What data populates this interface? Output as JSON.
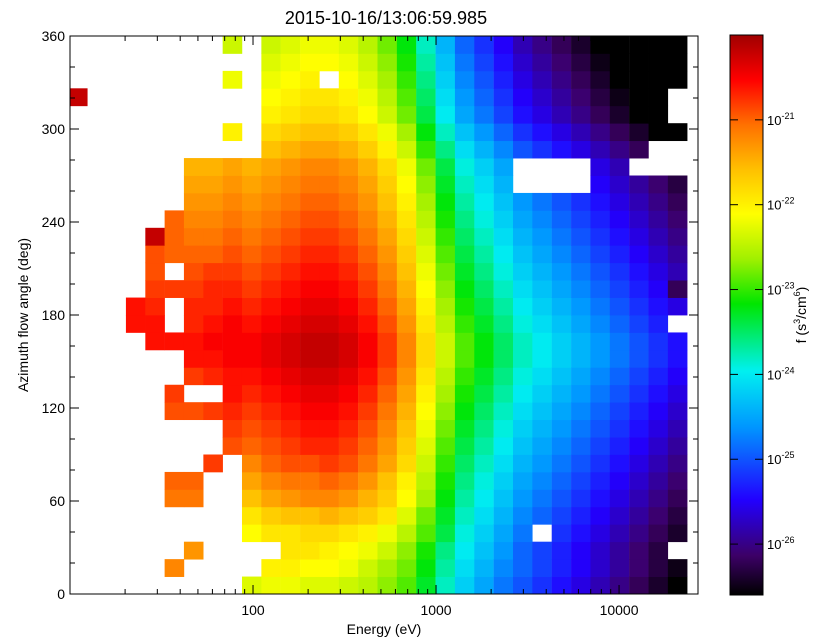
{
  "chart_data": {
    "type": "heatmap",
    "title": "2015-10-16/13:06:59.985",
    "xlabel": "Energy (eV)",
    "ylabel": "Azimuth flow angle (deg)",
    "xscale": "log",
    "xlim": [
      10,
      27000
    ],
    "ylim": [
      0,
      360
    ],
    "xticks": [
      {
        "value": 100,
        "label": "100"
      },
      {
        "value": 1000,
        "label": "1000"
      },
      {
        "value": 10000,
        "label": "10000"
      }
    ],
    "yticks": [
      {
        "value": 0,
        "label": "0"
      },
      {
        "value": 60,
        "label": "60"
      },
      {
        "value": 120,
        "label": "120"
      },
      {
        "value": 180,
        "label": "180"
      },
      {
        "value": 240,
        "label": "240"
      },
      {
        "value": 300,
        "label": "300"
      },
      {
        "value": 360,
        "label": "360"
      }
    ],
    "grid": false,
    "energy_bins_eV": [
      11.0,
      14.0,
      17.9,
      22.8,
      29.1,
      37.1,
      47.3,
      60.4,
      77.0,
      98.2,
      125.3,
      159.8,
      203.9,
      260.1,
      331.9,
      423.4,
      540.1,
      689.1,
      879.1,
      1121.5,
      1430.8,
      1825.3,
      2328.7,
      2970.9,
      3790.2,
      4835.4,
      6168.8,
      7870.1,
      10040.4,
      12809.3,
      16341.7,
      20848.4
    ],
    "azimuth_bins_deg": [
      5.625,
      16.875,
      28.125,
      39.375,
      50.625,
      61.875,
      73.125,
      84.375,
      95.625,
      106.875,
      118.125,
      129.375,
      140.625,
      151.875,
      163.125,
      174.375,
      185.625,
      196.875,
      208.125,
      219.375,
      230.625,
      241.875,
      253.125,
      264.375,
      275.625,
      286.875,
      298.125,
      309.375,
      320.625,
      331.875,
      343.125,
      354.375
    ],
    "value_encoding": "log10 of phase space density f (s^3/cm^6); null = no counts",
    "value_rows_by_azimuth": [
      [
        null,
        null,
        null,
        null,
        null,
        null,
        null,
        null,
        null,
        -22.3,
        -22.2,
        -22.2,
        -22.3,
        -22.3,
        -22.4,
        -22.5,
        -22.7,
        -22.9,
        -23.3,
        -23.8,
        -24.2,
        -24.5,
        -24.8,
        -25.0,
        -25.2,
        -25.4,
        -25.6,
        -25.8,
        -26.0,
        -26.2,
        -26.4,
        -26.6
      ],
      [
        null,
        null,
        null,
        null,
        null,
        -21.2,
        null,
        null,
        null,
        null,
        -22.0,
        -22.0,
        -22.1,
        -22.1,
        -22.2,
        -22.4,
        -22.6,
        -22.8,
        -23.2,
        -23.7,
        -24.1,
        -24.4,
        -24.7,
        -24.9,
        -25.1,
        -25.3,
        -25.5,
        -25.7,
        -25.9,
        -26.1,
        -26.3,
        -26.5
      ],
      [
        null,
        null,
        null,
        null,
        null,
        null,
        -21.3,
        null,
        null,
        null,
        null,
        -21.9,
        -21.9,
        -22.0,
        -22.1,
        -22.2,
        -22.4,
        -22.7,
        -23.1,
        -23.6,
        -24.0,
        -24.3,
        -24.6,
        -24.9,
        -25.1,
        -25.3,
        -25.5,
        -25.7,
        -25.9,
        -26.1,
        -26.3,
        null
      ],
      [
        null,
        null,
        null,
        null,
        null,
        null,
        null,
        null,
        null,
        -22.1,
        -21.9,
        -21.9,
        -21.8,
        -21.8,
        -21.9,
        -22.0,
        -22.2,
        -22.5,
        -22.9,
        -23.4,
        -23.9,
        -24.2,
        -24.5,
        -24.8,
        null,
        -25.2,
        -25.4,
        -25.6,
        -25.8,
        -26.0,
        -26.2,
        -26.4
      ],
      [
        null,
        null,
        null,
        null,
        null,
        null,
        null,
        null,
        null,
        -21.9,
        -21.7,
        -21.6,
        -21.6,
        -21.5,
        -21.6,
        -21.7,
        -21.9,
        -22.3,
        -22.8,
        -23.3,
        -23.8,
        -24.1,
        -24.4,
        -24.7,
        -24.9,
        -25.1,
        -25.3,
        -25.5,
        -25.7,
        -25.9,
        -26.1,
        -26.3
      ],
      [
        null,
        null,
        null,
        null,
        null,
        -21.1,
        -21.1,
        null,
        null,
        -21.6,
        -21.4,
        -21.3,
        -21.2,
        -21.2,
        -21.3,
        -21.5,
        -21.7,
        -22.1,
        -22.6,
        -23.2,
        -23.7,
        -24.0,
        -24.3,
        -24.6,
        -24.8,
        -25.0,
        -25.2,
        -25.4,
        -25.6,
        -25.8,
        -26.0,
        -26.2
      ],
      [
        null,
        null,
        null,
        null,
        null,
        -21.0,
        -21.0,
        null,
        null,
        -21.4,
        -21.2,
        -21.1,
        -21.1,
        -21.0,
        -21.1,
        -21.3,
        -21.6,
        -22.0,
        -22.5,
        -23.1,
        -23.6,
        -23.9,
        -24.2,
        -24.5,
        -24.7,
        -24.9,
        -25.1,
        -25.3,
        -25.5,
        -25.7,
        -25.9,
        -26.1
      ],
      [
        null,
        null,
        null,
        null,
        null,
        null,
        null,
        -20.8,
        null,
        -21.2,
        -21.0,
        -20.9,
        -20.9,
        -20.8,
        -20.9,
        -21.1,
        -21.4,
        -21.8,
        -22.4,
        -23.0,
        -23.5,
        -23.8,
        -24.1,
        -24.4,
        -24.6,
        -24.8,
        -25.0,
        -25.2,
        -25.4,
        -25.6,
        -25.8,
        -26.0
      ],
      [
        null,
        null,
        null,
        null,
        null,
        null,
        null,
        null,
        -20.9,
        -21.0,
        -20.9,
        -20.8,
        -20.7,
        -20.7,
        -20.8,
        -21.0,
        -21.3,
        -21.7,
        -22.3,
        -22.9,
        -23.4,
        -23.7,
        -24.0,
        -24.3,
        -24.5,
        -24.7,
        -24.9,
        -25.1,
        -25.3,
        -25.5,
        -25.7,
        -25.9
      ],
      [
        null,
        null,
        null,
        null,
        null,
        null,
        null,
        null,
        -20.8,
        -20.9,
        -20.8,
        -20.7,
        -20.6,
        -20.6,
        -20.7,
        -20.9,
        -21.2,
        -21.6,
        -22.2,
        -22.8,
        -23.3,
        -23.6,
        -23.9,
        -24.2,
        -24.4,
        -24.6,
        -24.8,
        -25.0,
        -25.2,
        -25.4,
        -25.6,
        -25.8
      ],
      [
        null,
        null,
        null,
        null,
        null,
        -20.9,
        -20.9,
        -20.8,
        -20.7,
        -20.8,
        -20.7,
        -20.6,
        -20.5,
        -20.5,
        -20.6,
        -20.8,
        -21.1,
        -21.5,
        -22.1,
        -22.7,
        -23.2,
        -23.5,
        -23.8,
        -24.1,
        -24.3,
        -24.5,
        -24.7,
        -24.9,
        -25.1,
        -25.3,
        -25.5,
        -25.7
      ],
      [
        null,
        null,
        null,
        null,
        null,
        -20.8,
        null,
        null,
        -20.6,
        -20.7,
        -20.6,
        -20.5,
        -20.4,
        -20.4,
        -20.5,
        -20.7,
        -21.0,
        -21.4,
        -22.0,
        -22.6,
        -23.1,
        -23.4,
        -23.7,
        -24.0,
        -24.2,
        -24.4,
        -24.6,
        -24.8,
        -25.0,
        -25.2,
        -25.4,
        -25.6
      ],
      [
        null,
        null,
        null,
        null,
        null,
        null,
        -20.8,
        -20.7,
        -20.6,
        -20.6,
        -20.5,
        -20.4,
        -20.3,
        -20.3,
        -20.4,
        -20.6,
        -20.9,
        -21.3,
        -21.9,
        -22.5,
        -23.0,
        -23.3,
        -23.6,
        -23.9,
        -24.1,
        -24.3,
        -24.5,
        -24.7,
        -24.9,
        -25.1,
        -25.3,
        -25.5
      ],
      [
        null,
        null,
        null,
        null,
        null,
        null,
        -20.6,
        -20.6,
        -20.5,
        -20.5,
        -20.4,
        -20.3,
        -20.2,
        -20.2,
        -20.3,
        -20.5,
        -20.8,
        -21.2,
        -21.8,
        -22.4,
        -22.9,
        -23.2,
        -23.5,
        -23.8,
        -24.0,
        -24.2,
        -24.4,
        -24.6,
        -24.8,
        -25.0,
        -25.2,
        -25.4
      ],
      [
        null,
        null,
        null,
        null,
        -20.6,
        -20.6,
        -20.6,
        -20.5,
        -20.5,
        -20.5,
        -20.4,
        -20.3,
        -20.2,
        -20.2,
        -20.3,
        -20.5,
        -20.8,
        -21.2,
        -21.8,
        -22.4,
        -22.9,
        -23.2,
        -23.5,
        -23.8,
        -24.0,
        -24.2,
        -24.4,
        -24.6,
        -24.8,
        -25.0,
        -25.2,
        -25.4
      ],
      [
        null,
        null,
        null,
        -20.6,
        -20.6,
        null,
        -20.7,
        -20.6,
        -20.5,
        -20.6,
        -20.5,
        -20.4,
        -20.3,
        -20.3,
        -20.4,
        -20.6,
        -20.9,
        -21.3,
        -21.9,
        -22.5,
        -23.0,
        -23.3,
        -23.6,
        -23.9,
        -24.1,
        -24.3,
        -24.5,
        -24.7,
        -24.9,
        -25.1,
        -25.3,
        null
      ],
      [
        null,
        null,
        null,
        -20.6,
        -20.7,
        null,
        -20.7,
        -20.7,
        -20.6,
        -20.7,
        -20.6,
        -20.5,
        -20.4,
        -20.4,
        -20.5,
        -20.7,
        -21.0,
        -21.4,
        -22.0,
        -22.6,
        -23.1,
        -23.4,
        -23.7,
        -24.0,
        -24.2,
        -24.4,
        -24.6,
        -24.8,
        -25.0,
        -25.2,
        -25.4,
        -25.6
      ],
      [
        null,
        null,
        null,
        null,
        -20.8,
        -20.8,
        -20.8,
        -20.7,
        -20.7,
        -20.8,
        -20.7,
        -20.6,
        -20.5,
        -20.5,
        -20.6,
        -20.8,
        -21.1,
        -21.5,
        -22.1,
        -22.7,
        -23.2,
        -23.5,
        -23.8,
        -24.1,
        -24.3,
        -24.5,
        -24.7,
        -24.9,
        -25.1,
        -25.3,
        -25.5,
        -26.2
      ],
      [
        null,
        null,
        null,
        null,
        -20.9,
        null,
        -20.9,
        -20.8,
        -20.8,
        -20.9,
        -20.8,
        -20.7,
        -20.6,
        -20.6,
        -20.7,
        -20.9,
        -21.2,
        -21.6,
        -22.2,
        -22.8,
        -23.3,
        -23.6,
        -23.9,
        -24.2,
        -24.4,
        -24.6,
        -24.8,
        -25.0,
        -25.2,
        -25.4,
        -25.6,
        -25.8
      ],
      [
        null,
        null,
        null,
        null,
        -20.9,
        -21.0,
        -21.0,
        -21.0,
        -20.9,
        -21.0,
        -20.9,
        -20.8,
        -20.7,
        -20.7,
        -20.8,
        -21.0,
        -21.3,
        -21.7,
        -22.3,
        -22.9,
        -23.4,
        -23.7,
        -24.0,
        -24.3,
        -24.5,
        -24.7,
        -24.9,
        -25.1,
        -25.3,
        -25.5,
        -25.7,
        -25.9
      ],
      [
        null,
        null,
        null,
        null,
        -20.2,
        -21.0,
        -21.1,
        -21.1,
        -21.0,
        -21.1,
        -21.0,
        -20.9,
        -20.8,
        -20.8,
        -20.9,
        -21.1,
        -21.4,
        -21.8,
        -22.4,
        -23.0,
        -23.5,
        -23.8,
        -24.1,
        -24.4,
        -24.6,
        -24.8,
        -25.0,
        -25.2,
        -25.4,
        -25.6,
        -25.8,
        -26.0
      ],
      [
        null,
        null,
        null,
        null,
        null,
        -21.0,
        -21.2,
        -21.2,
        -21.1,
        -21.2,
        -21.1,
        -21.0,
        -20.9,
        -20.9,
        -21.0,
        -21.2,
        -21.5,
        -21.9,
        -22.5,
        -23.1,
        -23.6,
        -23.9,
        -24.2,
        -24.5,
        -24.7,
        -24.9,
        -25.1,
        -25.3,
        -25.5,
        -25.7,
        -25.9,
        -26.1
      ],
      [
        null,
        null,
        null,
        null,
        null,
        null,
        -21.3,
        -21.3,
        -21.2,
        -21.3,
        -21.2,
        -21.1,
        -21.0,
        -21.0,
        -21.1,
        -21.3,
        -21.6,
        -22.0,
        -22.6,
        -23.2,
        -23.7,
        -24.0,
        -24.3,
        -24.6,
        -24.8,
        -25.0,
        -25.2,
        -25.4,
        -25.6,
        -25.8,
        -26.0,
        -26.2
      ],
      [
        null,
        null,
        null,
        null,
        null,
        null,
        -21.4,
        -21.4,
        -21.3,
        -21.4,
        -21.3,
        -21.2,
        -21.1,
        -21.1,
        -21.2,
        -21.4,
        -21.7,
        -22.1,
        -22.7,
        -23.3,
        -23.8,
        -24.1,
        -24.4,
        null,
        null,
        null,
        null,
        -25.5,
        -25.7,
        -25.9,
        -26.1,
        -26.3
      ],
      [
        null,
        null,
        null,
        null,
        null,
        null,
        -21.5,
        -21.5,
        -21.4,
        -21.5,
        -21.4,
        -21.3,
        -21.2,
        -21.2,
        -21.3,
        -21.5,
        -21.8,
        -22.2,
        -22.8,
        -23.4,
        -23.9,
        -24.2,
        -24.5,
        null,
        null,
        null,
        null,
        -25.6,
        -25.8,
        null,
        null,
        null
      ],
      [
        null,
        null,
        null,
        null,
        null,
        null,
        null,
        null,
        null,
        null,
        -21.6,
        -21.5,
        -21.4,
        -21.4,
        -21.5,
        -21.7,
        -22.0,
        -22.4,
        -23.0,
        -23.6,
        -24.1,
        -24.4,
        -24.7,
        -25.0,
        -25.2,
        -25.4,
        -25.6,
        -25.8,
        -26.0,
        -26.2,
        null,
        null
      ],
      [
        null,
        null,
        null,
        null,
        null,
        null,
        null,
        null,
        -22.0,
        null,
        -21.8,
        -21.7,
        -21.6,
        -21.6,
        -21.7,
        -21.9,
        -22.2,
        -22.6,
        -23.2,
        -23.8,
        -24.3,
        -24.6,
        -24.9,
        -25.2,
        -25.4,
        -25.6,
        -25.8,
        -26.0,
        -26.2,
        -26.4,
        -26.6,
        -26.8
      ],
      [
        null,
        null,
        null,
        null,
        null,
        null,
        null,
        null,
        null,
        null,
        -22.0,
        -21.9,
        -21.8,
        -21.8,
        -21.9,
        -22.1,
        -22.4,
        -22.8,
        -23.4,
        -24.0,
        -24.5,
        -24.8,
        -25.1,
        -25.4,
        -25.6,
        -25.8,
        -26.0,
        -26.2,
        -26.4,
        -26.6,
        -26.8,
        null
      ],
      [
        -20.2,
        null,
        null,
        null,
        null,
        null,
        null,
        null,
        null,
        null,
        -22.1,
        -22.0,
        -21.9,
        -21.9,
        -22.0,
        -22.2,
        -22.5,
        -22.9,
        -23.5,
        -24.1,
        -24.6,
        -24.9,
        -25.2,
        -25.5,
        -25.7,
        -25.9,
        -26.1,
        -26.3,
        -26.5,
        -26.7,
        -26.9,
        null
      ],
      [
        null,
        null,
        null,
        null,
        null,
        null,
        null,
        null,
        -22.2,
        null,
        -22.2,
        -22.1,
        -22.0,
        null,
        -22.1,
        -22.3,
        -22.6,
        -23.0,
        -23.6,
        -24.2,
        -24.7,
        -25.0,
        -25.3,
        -25.6,
        -25.8,
        -26.0,
        -26.2,
        -26.4,
        -26.6,
        -26.8,
        -27.0,
        -27.2
      ],
      [
        null,
        null,
        null,
        null,
        null,
        null,
        null,
        null,
        null,
        null,
        -22.3,
        -22.2,
        -22.1,
        -22.1,
        -22.2,
        -22.4,
        -22.7,
        -23.1,
        -23.7,
        -24.3,
        -24.8,
        -25.1,
        -25.4,
        -25.7,
        -25.9,
        -26.1,
        -26.3,
        -26.5,
        -26.7,
        -26.9,
        -27.1,
        -27.3
      ],
      [
        null,
        null,
        null,
        null,
        null,
        null,
        null,
        null,
        -22.4,
        null,
        -22.4,
        -22.3,
        -22.2,
        -22.2,
        -22.3,
        -22.5,
        -22.8,
        -23.2,
        -23.8,
        -24.4,
        -24.9,
        -25.2,
        -25.5,
        -25.8,
        -26.0,
        -26.2,
        -26.4,
        -26.6,
        -26.8,
        -27.0,
        -27.2,
        -27.4
      ]
    ],
    "colorbar": {
      "label_main": "f (s",
      "label_sup1": "3",
      "label_mid": "/cm",
      "label_sup2": "6",
      "label_end": ")",
      "range_log10": [
        -26.6,
        -20.0
      ],
      "ticks": [
        {
          "log10": -21,
          "base": "10",
          "exp": "-21"
        },
        {
          "log10": -22,
          "base": "10",
          "exp": "-22"
        },
        {
          "log10": -23,
          "base": "10",
          "exp": "-23"
        },
        {
          "log10": -24,
          "base": "10",
          "exp": "-24"
        },
        {
          "log10": -25,
          "base": "10",
          "exp": "-25"
        },
        {
          "log10": -26,
          "base": "10",
          "exp": "-26"
        }
      ]
    }
  }
}
